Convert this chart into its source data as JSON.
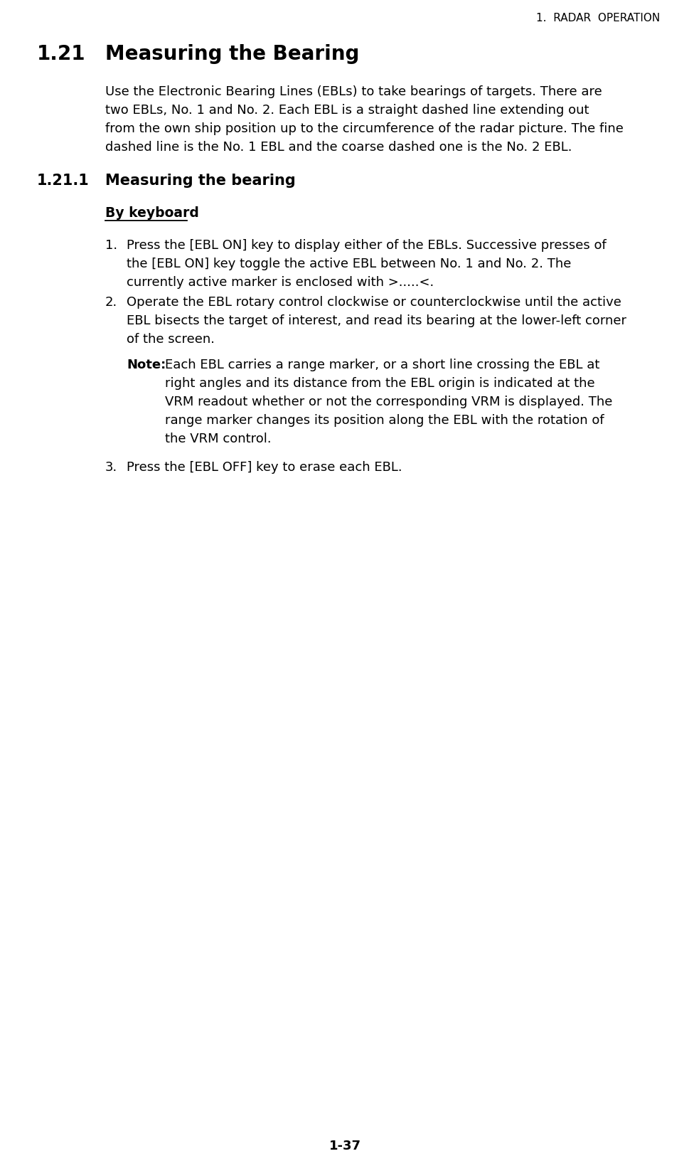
{
  "header": "1.  RADAR  OPERATION",
  "section_num": "1.21",
  "section_title": "Measuring the Bearing",
  "subsection_num": "1.21.1",
  "subsection_title": "Measuring the bearing",
  "by_keyboard_label": "By keyboard",
  "intro_lines": [
    "Use the Electronic Bearing Lines (EBLs) to take bearings of targets. There are",
    "two EBLs, No. 1 and No. 2. Each EBL is a straight dashed line extending out",
    "from the own ship position up to the circumference of the radar picture. The fine",
    "dashed line is the No. 1 EBL and the coarse dashed one is the No. 2 EBL."
  ],
  "item1_lines": [
    "Press the [EBL ON] key to display either of the EBLs. Successive presses of",
    "the [EBL ON] key toggle the active EBL between No. 1 and No. 2. The",
    "currently active marker is enclosed with >.....<."
  ],
  "item2_lines": [
    "Operate the EBL rotary control clockwise or counterclockwise until the active",
    "EBL bisects the target of interest, and read its bearing at the lower-left corner",
    "of the screen."
  ],
  "note_label": "Note:",
  "note_lines": [
    "Each EBL carries a range marker, or a short line crossing the EBL at",
    "right angles and its distance from the EBL origin is indicated at the",
    "VRM readout whether or not the corresponding VRM is displayed. The",
    "range marker changes its position along the EBL with the rotation of",
    "the VRM control."
  ],
  "item3_text": "Press the [EBL OFF] key to erase each EBL.",
  "footer": "1-37",
  "bg_color": "#ffffff",
  "text_color": "#000000"
}
